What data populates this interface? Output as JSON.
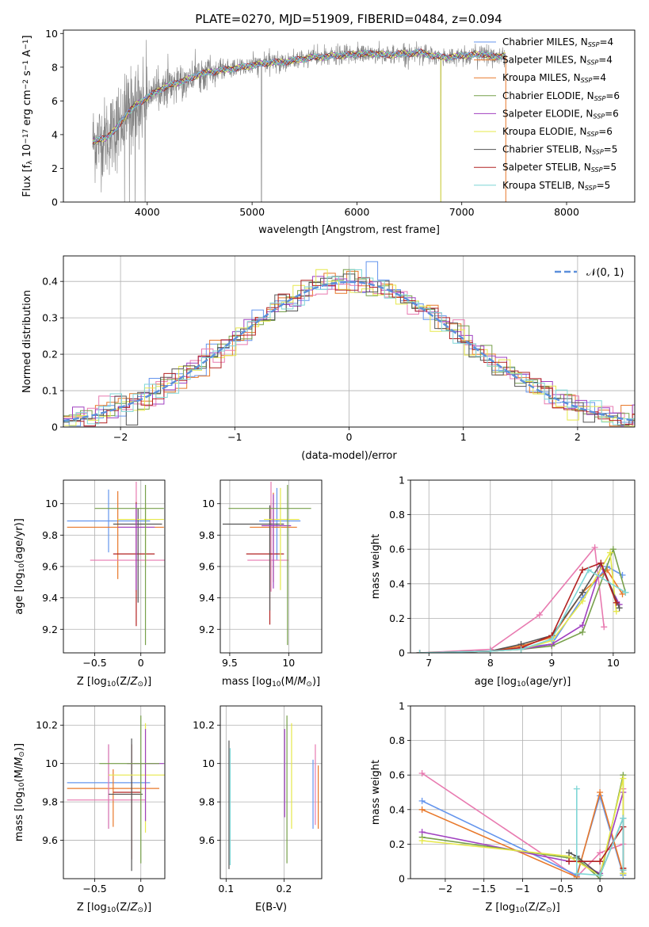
{
  "figure": {
    "title": "PLATE=0270, MJD=51909, FIBERID=0484, z=0.094"
  },
  "colors": {
    "Chabrier MILES": "#6495ed",
    "Salpeter MILES": "#e8782a",
    "Kroupa MILES": "#e8782a",
    "Chabrier ELODIE": "#77a04a",
    "Salpeter ELODIE": "#a040c0",
    "Kroupa ELODIE": "#e6e84a",
    "Chabrier STELIB": "#555555",
    "Salpeter STELIB": "#b22222",
    "Kroupa STELIB": "#7fd6d6",
    "data": "#808080",
    "normal": "#5b8fdb",
    "extra": "#e87ab0"
  },
  "chart_data": [
    {
      "id": "spectrum",
      "type": "line",
      "title": "PLATE=0270, MJD=51909, FIBERID=0484, z=0.094",
      "xlabel": "wavelength [Angstrom, rest frame]",
      "ylabel": "Flux [f_λ 10^-17 erg cm^-2 s^-1 A^-1]",
      "xlim": [
        3200,
        8650
      ],
      "ylim": [
        0,
        10.2
      ],
      "xticks": [
        4000,
        5000,
        6000,
        7000,
        8000
      ],
      "yticks": [
        0,
        2,
        4,
        6,
        8,
        10
      ],
      "grid": false,
      "legend_position": "right",
      "legend": [
        {
          "label": "Chabrier MILES, N",
          "sub": "SSP",
          "suffix": "=4",
          "color": "#6495ed"
        },
        {
          "label": "Salpeter MILES, N",
          "sub": "SSP",
          "suffix": "=4",
          "color": "#e8782a"
        },
        {
          "label": "Kroupa MILES, N",
          "sub": "SSP",
          "suffix": "=4",
          "color": "#e8782a"
        },
        {
          "label": "Chabrier ELODIE, N",
          "sub": "SSP",
          "suffix": "=6",
          "color": "#77a04a"
        },
        {
          "label": "Salpeter ELODIE, N",
          "sub": "SSP",
          "suffix": "=6",
          "color": "#a040c0"
        },
        {
          "label": "Kroupa ELODIE, N",
          "sub": "SSP",
          "suffix": "=6",
          "color": "#e6e84a"
        },
        {
          "label": "Chabrier STELIB, N",
          "sub": "SSP",
          "suffix": "=5",
          "color": "#555555"
        },
        {
          "label": "Salpeter STELIB, N",
          "sub": "SSP",
          "suffix": "=5",
          "color": "#b22222"
        },
        {
          "label": "Kroupa STELIB, N",
          "sub": "SSP",
          "suffix": "=5",
          "color": "#7fd6d6"
        }
      ],
      "continuum": {
        "x": [
          3500,
          3600,
          3700,
          3800,
          3900,
          4000,
          4100,
          4200,
          4300,
          4400,
          4500,
          4600,
          4700,
          4800,
          4900,
          5000,
          5100,
          5200,
          5300,
          5400,
          5500,
          5600,
          5700,
          5800,
          5900,
          6000,
          6100,
          6200,
          6300,
          6400,
          6500,
          6600,
          6700,
          6800,
          6900,
          7000,
          7100,
          7200,
          7300,
          7400
        ],
        "y": [
          3.6,
          3.8,
          4.3,
          5.2,
          5.8,
          6.2,
          6.6,
          6.9,
          7.1,
          7.3,
          7.6,
          7.7,
          7.8,
          7.9,
          8.0,
          8.1,
          8.2,
          8.3,
          8.3,
          8.4,
          8.5,
          8.6,
          8.6,
          8.7,
          8.7,
          8.8,
          8.8,
          8.8,
          8.7,
          8.8,
          8.8,
          8.9,
          8.7,
          8.6,
          8.6,
          8.7,
          8.7,
          8.8,
          8.6,
          8.7
        ]
      },
      "data_range": [
        3480,
        7420
      ]
    },
    {
      "id": "residuals",
      "type": "line",
      "xlabel": "(data-model)/error",
      "ylabel": "Normed distribution",
      "xlim": [
        -2.5,
        2.5
      ],
      "ylim": [
        0,
        0.47
      ],
      "xticks": [
        -2,
        -1,
        0,
        1,
        2
      ],
      "yticks": [
        0.0,
        0.1,
        0.2,
        0.3,
        0.4
      ],
      "grid": true,
      "legend_position": "top-right",
      "legend": [
        {
          "label": "𝒩(0, 1)",
          "color": "#5b8fdb"
        }
      ],
      "bin_width": 0.1,
      "normal": {
        "mu": 0,
        "sigma": 1
      }
    },
    {
      "id": "age_vs_Z",
      "type": "scatter",
      "xlabel": "Z [log10(Z/Z⊙)]",
      "ylabel": "age [log10(age/yr)]",
      "xlim": [
        -0.84,
        0.26
      ],
      "ylim": [
        9.05,
        10.15
      ],
      "xticks": [
        -0.5,
        0.0
      ],
      "yticks": [
        9.2,
        9.4,
        9.6,
        9.8,
        10.0
      ],
      "grid": true,
      "points": [
        {
          "x": -0.35,
          "xerr": [
            0.45,
            0.45
          ],
          "y": 9.89,
          "yerr": [
            0.2,
            0.2
          ],
          "color": "#6495ed"
        },
        {
          "x": -0.25,
          "xerr": [
            0.55,
            0.5
          ],
          "y": 9.85,
          "yerr": [
            0.33,
            0.23
          ],
          "color": "#e8782a"
        },
        {
          "x": -0.05,
          "xerr": [
            0.5,
            0.35
          ],
          "y": 9.64,
          "yerr": [
            0.2,
            0.5
          ],
          "color": "#e87ab0"
        },
        {
          "x": -0.05,
          "xerr": [
            0.25,
            0.2
          ],
          "y": 9.68,
          "yerr": [
            0.46,
            0.33
          ],
          "color": "#b22222"
        },
        {
          "x": -0.03,
          "xerr": [
            0.27,
            0.26
          ],
          "y": 9.87,
          "yerr": [
            0.5,
            0.1
          ],
          "color": "#555555"
        },
        {
          "x": 0.05,
          "xerr": [
            0.3,
            0.2
          ],
          "y": 9.9,
          "yerr": [
            0.3,
            0.1
          ],
          "color": "#e6e84a"
        },
        {
          "x": -0.05,
          "xerr": [
            0.2,
            0.2
          ],
          "y": 9.85,
          "yerr": [
            0.4,
            0.15
          ],
          "color": "#a040c0"
        },
        {
          "x": 0.05,
          "xerr": [
            0.55,
            0.2
          ],
          "y": 9.97,
          "yerr": [
            0.87,
            0.15
          ],
          "color": "#77a04a"
        }
      ]
    },
    {
      "id": "age_vs_mass",
      "type": "scatter",
      "xlabel": "mass [log10(M/M⊙)]",
      "ylabel": "",
      "xlim": [
        9.42,
        10.28
      ],
      "ylim": [
        9.05,
        10.15
      ],
      "xticks": [
        9.5,
        10.0
      ],
      "yticks": [
        9.2,
        9.4,
        9.6,
        9.8,
        10.0
      ],
      "grid": true,
      "points": [
        {
          "x": 9.9,
          "xerr": [
            0.15,
            0.2
          ],
          "y": 9.89,
          "yerr": [
            0.25,
            0.21
          ],
          "color": "#6495ed"
        },
        {
          "x": 9.87,
          "xerr": [
            0.2,
            0.2
          ],
          "y": 9.85,
          "yerr": [
            0.35,
            0.22
          ],
          "color": "#e8782a"
        },
        {
          "x": 9.85,
          "xerr": [
            0.2,
            0.15
          ],
          "y": 9.64,
          "yerr": [
            0.2,
            0.5
          ],
          "color": "#e87ab0"
        },
        {
          "x": 9.84,
          "xerr": [
            0.2,
            0.12
          ],
          "y": 9.68,
          "yerr": [
            0.45,
            0.3
          ],
          "color": "#b22222"
        },
        {
          "x": 9.84,
          "xerr": [
            0.4,
            0.12
          ],
          "y": 9.87,
          "yerr": [
            0.55,
            0.12
          ],
          "color": "#555555"
        },
        {
          "x": 9.93,
          "xerr": [
            0.14,
            0.16
          ],
          "y": 9.9,
          "yerr": [
            0.45,
            0.2
          ],
          "color": "#e6e84a"
        },
        {
          "x": 9.87,
          "xerr": [
            0.1,
            0.15
          ],
          "y": 9.86,
          "yerr": [
            0.4,
            0.2
          ],
          "color": "#a040c0"
        },
        {
          "x": 9.99,
          "xerr": [
            0.5,
            0.2
          ],
          "y": 9.97,
          "yerr": [
            0.87,
            0.15
          ],
          "color": "#77a04a"
        }
      ]
    },
    {
      "id": "weight_vs_age",
      "type": "line",
      "xlabel": "age [log10(age/yr)]",
      "ylabel": "mass weight",
      "xlim": [
        6.7,
        10.35
      ],
      "ylim": [
        0,
        1
      ],
      "xticks": [
        7,
        8,
        9,
        10
      ],
      "yticks": [
        0.0,
        0.2,
        0.4,
        0.6,
        0.8,
        1.0
      ],
      "grid": true,
      "series": [
        {
          "color": "#6495ed",
          "x": [
            6.85,
            8.0,
            8.5,
            9.0,
            9.5,
            9.9,
            10.15
          ],
          "y": [
            0.0,
            0.01,
            0.03,
            0.05,
            0.32,
            0.5,
            0.45
          ]
        },
        {
          "color": "#e8782a",
          "x": [
            6.85,
            8.0,
            8.5,
            9.0,
            9.5,
            9.9,
            10.15
          ],
          "y": [
            0.0,
            0.01,
            0.04,
            0.09,
            0.35,
            0.48,
            0.34
          ]
        },
        {
          "color": "#e87ab0",
          "x": [
            6.85,
            8.0,
            8.8,
            9.7,
            9.85
          ],
          "y": [
            0.0,
            0.02,
            0.22,
            0.61,
            0.15
          ]
        },
        {
          "color": "#77a04a",
          "x": [
            6.85,
            8.0,
            8.5,
            9.0,
            9.5,
            10.0,
            10.2
          ],
          "y": [
            0.0,
            0.01,
            0.02,
            0.04,
            0.12,
            0.6,
            0.35
          ]
        },
        {
          "color": "#a040c0",
          "x": [
            6.85,
            8.0,
            8.5,
            9.0,
            9.5,
            9.8,
            10.1
          ],
          "y": [
            0.0,
            0.01,
            0.02,
            0.05,
            0.16,
            0.5,
            0.28
          ]
        },
        {
          "color": "#e6e84a",
          "x": [
            6.85,
            8.0,
            8.5,
            9.0,
            9.5,
            9.95,
            10.05
          ],
          "y": [
            0.0,
            0.01,
            0.02,
            0.07,
            0.3,
            0.58,
            0.24
          ]
        },
        {
          "color": "#555555",
          "x": [
            6.85,
            8.0,
            8.5,
            9.0,
            9.5,
            9.8,
            10.1
          ],
          "y": [
            0.0,
            0.01,
            0.05,
            0.1,
            0.35,
            0.52,
            0.26
          ]
        },
        {
          "color": "#b22222",
          "x": [
            6.85,
            8.0,
            8.5,
            9.0,
            9.5,
            9.8,
            10.05
          ],
          "y": [
            0.0,
            0.01,
            0.03,
            0.1,
            0.48,
            0.52,
            0.29
          ]
        },
        {
          "color": "#7fd6d6",
          "x": [
            6.85,
            8.0,
            8.5,
            9.0,
            9.6,
            10.2
          ],
          "y": [
            0.0,
            0.01,
            0.02,
            0.08,
            0.48,
            0.35
          ]
        }
      ]
    },
    {
      "id": "mass_vs_Z",
      "type": "scatter",
      "xlabel": "Z [log10(Z/Z⊙)]",
      "ylabel": "mass [log10(M/M⊙)]",
      "xlim": [
        -0.84,
        0.26
      ],
      "ylim": [
        9.4,
        10.3
      ],
      "xticks": [
        -0.5,
        0.0
      ],
      "yticks": [
        9.6,
        9.8,
        10.0,
        10.2
      ],
      "grid": true,
      "points": [
        {
          "x": -0.35,
          "xerr": [
            0.45,
            0.45
          ],
          "y": 9.9,
          "yerr": [
            0.24,
            0.2
          ],
          "color": "#6495ed"
        },
        {
          "x": -0.3,
          "xerr": [
            0.5,
            0.5
          ],
          "y": 9.87,
          "yerr": [
            0.2,
            0.1
          ],
          "color": "#e8782a"
        },
        {
          "x": -0.35,
          "xerr": [
            0.45,
            0.4
          ],
          "y": 9.81,
          "yerr": [
            0.15,
            0.29
          ],
          "color": "#e87ab0"
        },
        {
          "x": -0.1,
          "xerr": [
            0.2,
            0.1
          ],
          "y": 9.85,
          "yerr": [
            0.35,
            0.25
          ],
          "color": "#b22222"
        },
        {
          "x": -0.1,
          "xerr": [
            0.25,
            0.12
          ],
          "y": 9.84,
          "yerr": [
            0.4,
            0.29
          ],
          "color": "#555555"
        },
        {
          "x": 0.05,
          "xerr": [
            0.4,
            0.25
          ],
          "y": 9.94,
          "yerr": [
            0.3,
            0.27
          ],
          "color": "#e6e84a"
        },
        {
          "x": 0.05,
          "xerr": [
            0.2,
            0.2
          ],
          "y": 10.0,
          "yerr": [
            0.3,
            0.18
          ],
          "color": "#a040c0"
        },
        {
          "x": 0.0,
          "xerr": [
            0.45,
            0.2
          ],
          "y": 10.0,
          "yerr": [
            0.52,
            0.25
          ],
          "color": "#77a04a"
        }
      ]
    },
    {
      "id": "mass_vs_ebv",
      "type": "scatter",
      "xlabel": "E(B-V)",
      "ylabel": "",
      "xlim": [
        0.09,
        0.265
      ],
      "ylim": [
        9.4,
        10.3
      ],
      "xticks": [
        0.1,
        0.2
      ],
      "yticks": [
        9.6,
        9.8,
        10.0,
        10.2
      ],
      "grid": true,
      "points": [
        {
          "x": 0.105,
          "y": 9.8,
          "yerr": [
            0.35,
            0.32
          ],
          "color": "#555555"
        },
        {
          "x": 0.107,
          "y": 9.84,
          "yerr": [
            0.37,
            0.24
          ],
          "color": "#7fd6d6"
        },
        {
          "x": 0.201,
          "y": 9.95,
          "yerr": [
            0.23,
            0.23
          ],
          "color": "#a040c0"
        },
        {
          "x": 0.205,
          "y": 9.87,
          "yerr": [
            0.39,
            0.38
          ],
          "color": "#77a04a"
        },
        {
          "x": 0.213,
          "y": 9.94,
          "yerr": [
            0.28,
            0.27
          ],
          "color": "#e6e84a"
        },
        {
          "x": 0.25,
          "y": 9.84,
          "yerr": [
            0.18,
            0.18
          ],
          "color": "#6495ed"
        },
        {
          "x": 0.254,
          "y": 9.88,
          "yerr": [
            0.2,
            0.22
          ],
          "color": "#e87ab0"
        },
        {
          "x": 0.259,
          "y": 9.82,
          "yerr": [
            0.16,
            0.17
          ],
          "color": "#e8782a"
        }
      ]
    },
    {
      "id": "weight_vs_Z",
      "type": "line",
      "xlabel": "Z [log10(Z/Z⊙)]",
      "ylabel": "mass weight",
      "xlim": [
        -2.45,
        0.45
      ],
      "ylim": [
        0,
        1
      ],
      "xticks": [
        -2.0,
        -1.5,
        -1.0,
        -0.5,
        0.0
      ],
      "yticks": [
        0.0,
        0.2,
        0.4,
        0.6,
        0.8,
        1.0
      ],
      "grid": true,
      "series": [
        {
          "color": "#e87ab0",
          "x": [
            -2.3,
            -0.3,
            0.0,
            0.3,
            0.3
          ],
          "y": [
            0.61,
            0.01,
            0.15,
            0.2,
            0.52
          ]
        },
        {
          "color": "#6495ed",
          "x": [
            -2.3,
            -0.3,
            0.0,
            0.3,
            0.3
          ],
          "y": [
            0.45,
            0.02,
            0.48,
            0.02,
            0.05
          ]
        },
        {
          "color": "#e8782a",
          "x": [
            -2.3,
            -0.3,
            0.0,
            0.3,
            0.3
          ],
          "y": [
            0.4,
            0.01,
            0.5,
            0.03,
            0.06
          ]
        },
        {
          "color": "#a040c0",
          "x": [
            -2.3,
            -0.4,
            -0.3,
            0.0,
            0.3
          ],
          "y": [
            0.27,
            0.1,
            0.1,
            0.03,
            0.5
          ]
        },
        {
          "color": "#77a04a",
          "x": [
            -2.3,
            -0.4,
            -0.3,
            0.0,
            0.3,
            0.3
          ],
          "y": [
            0.24,
            0.12,
            0.12,
            0.0,
            0.6,
            0.03
          ]
        },
        {
          "color": "#e6e84a",
          "x": [
            -2.3,
            -0.4,
            -0.3,
            0.0,
            0.3,
            0.3
          ],
          "y": [
            0.22,
            0.13,
            0.1,
            0.02,
            0.58,
            0.03
          ]
        },
        {
          "color": "#555555",
          "x": [
            -0.4,
            -0.3,
            0.0,
            0.3,
            0.3
          ],
          "y": [
            0.15,
            0.13,
            0.02,
            0.35,
            0.05
          ]
        },
        {
          "color": "#b22222",
          "x": [
            -0.4,
            -0.3,
            0.0,
            0.3,
            0.3
          ],
          "y": [
            0.1,
            0.1,
            0.1,
            0.3,
            0.06
          ]
        },
        {
          "color": "#7fd6d6",
          "x": [
            -0.3,
            -0.3,
            0.0,
            0.3,
            0.3
          ],
          "y": [
            0.52,
            0.03,
            0.02,
            0.35,
            0.05
          ]
        }
      ]
    }
  ]
}
